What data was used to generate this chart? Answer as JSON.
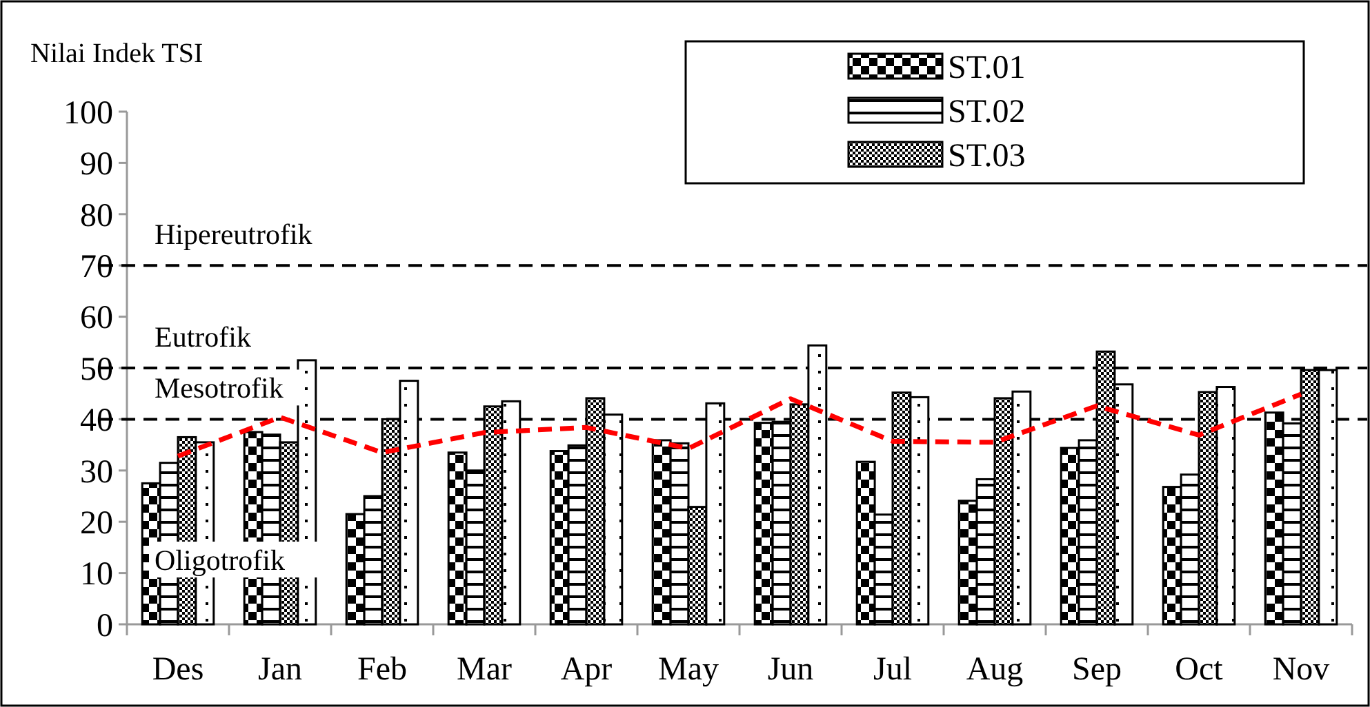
{
  "chart_data": {
    "type": "bar",
    "ylabel": "Nilai Indek TSI",
    "categories": [
      "Des",
      "Jan",
      "Feb",
      "Mar",
      "Apr",
      "May",
      "Jun",
      "Jul",
      "Aug",
      "Sep",
      "Oct",
      "Nov"
    ],
    "series": [
      {
        "name": "ST.01",
        "color": "#000000",
        "values": [
          27.5,
          37.5,
          21.5,
          33.5,
          33.8,
          35.9,
          39.3,
          31.7,
          24.1,
          34.4,
          26.8,
          41.3
        ]
      },
      {
        "name": "ST.02",
        "color": "#000000",
        "values": [
          31.5,
          37,
          25,
          30,
          34.9,
          35.3,
          39.5,
          21.4,
          28.3,
          35.9,
          29.2,
          39.2
        ]
      },
      {
        "name": "ST.03",
        "color": "#000000",
        "values": [
          36.5,
          35.5,
          40,
          42.5,
          44.1,
          22.9,
          42.9,
          45.2,
          44.1,
          53.2,
          45.3,
          49.6
        ]
      },
      {
        "color": "#000000",
        "values": [
          35.5,
          51.5,
          47.5,
          43.5,
          40.9,
          43.1,
          54.4,
          44.3,
          45.4,
          46.8,
          46.3,
          49.6
        ]
      },
      {
        "type": "line",
        "color": "#ff0000",
        "line_style": "dashed",
        "values": [
          32.8,
          40.4,
          33.5,
          37.4,
          38.4,
          34.3,
          44,
          35.7,
          35.5,
          42.6,
          36.9,
          44.9
        ]
      }
    ],
    "ylim": [
      0,
      100
    ],
    "yticks": [
      0,
      10,
      20,
      30,
      40,
      50,
      60,
      70,
      80,
      90,
      100
    ],
    "ref_lines": [
      {
        "axis": "y",
        "value": 70,
        "label": "Hipereutrofik",
        "color": "#000000",
        "line_style": "dashed"
      },
      {
        "axis": "y",
        "value": 50,
        "label": "Eutrofik",
        "color": "#000000",
        "line_style": "dashed"
      },
      {
        "axis": "y",
        "value": 40,
        "label": "Mesotrofik",
        "color": "#000000",
        "line_style": "dashed"
      }
    ],
    "annotations": [
      "Oligotrofik"
    ],
    "legend": "top right",
    "grid": false
  }
}
